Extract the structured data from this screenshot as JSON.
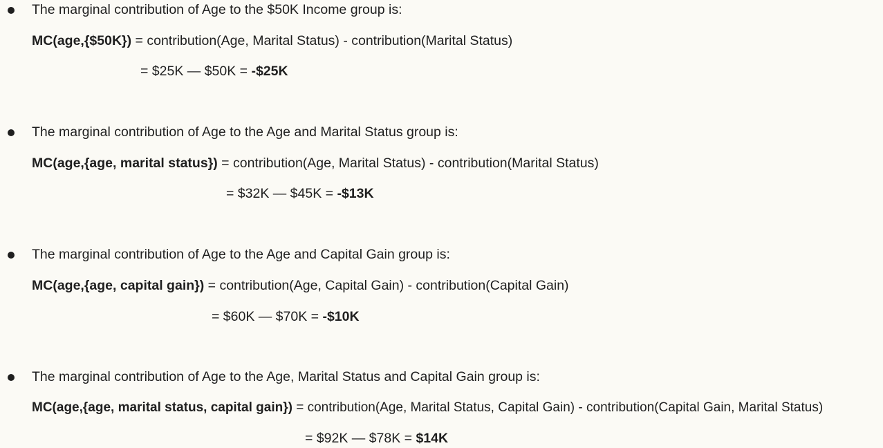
{
  "items": [
    {
      "intro": "The marginal contribution of Age to the $50K Income group is:",
      "mc_label": "MC(age,{$50K})",
      "formula": " = contribution(Age, Marital Status)  -  contribution(Marital Status)",
      "calc": "= $25K — $50K = ",
      "result": "-$25K"
    },
    {
      "intro": "The marginal contribution of Age to the Age and Marital Status group is:",
      "mc_label": "MC(age,{age, marital status})",
      "formula": " = contribution(Age, Marital Status)  -  contribution(Marital Status)",
      "calc": "= $32K — $45K = ",
      "result": "-$13K"
    },
    {
      "intro": "The marginal contribution of Age to the Age and Capital Gain group is:",
      "mc_label": "MC(age,{age, capital gain})",
      "formula": " = contribution(Age, Capital Gain)  -  contribution(Capital Gain)",
      "calc": "= $60K — $70K = ",
      "result": "-$10K"
    },
    {
      "intro": "The marginal contribution of Age to the Age, Marital Status and Capital Gain group is:",
      "mc_label": "MC(age,{age, marital status, capital gain})",
      "formula": " = contribution(Age, Marital Status, Capital Gain)  -  contribution(Capital Gain, Marital Status)",
      "calc": "= $92K — $78K = ",
      "result": "$14K"
    }
  ]
}
